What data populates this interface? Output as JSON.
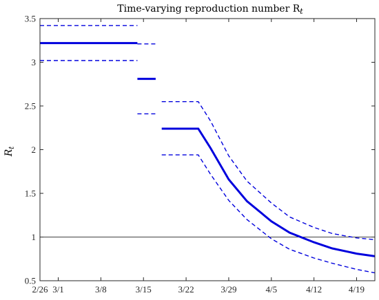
{
  "chart_data": {
    "type": "line",
    "title": "Time-varying reproduction number R",
    "title_subscript": "t",
    "ylabel": "R",
    "ylabel_subscript": "t",
    "xlabel": "",
    "xlim": [
      "2026-02-26",
      "2026-04-22"
    ],
    "ylim": [
      0.5,
      3.5
    ],
    "x_ticks": [
      {
        "date": "2026-02-26",
        "label": "2/26"
      },
      {
        "date": "2026-03-01",
        "label": "3/1"
      },
      {
        "date": "2026-03-08",
        "label": "3/8"
      },
      {
        "date": "2026-03-15",
        "label": "3/15"
      },
      {
        "date": "2026-03-22",
        "label": "3/22"
      },
      {
        "date": "2026-03-29",
        "label": "3/29"
      },
      {
        "date": "2026-04-05",
        "label": "4/5"
      },
      {
        "date": "2026-04-12",
        "label": "4/12"
      },
      {
        "date": "2026-04-19",
        "label": "4/19"
      }
    ],
    "y_ticks": [
      {
        "value": 0.5,
        "label": "0.5"
      },
      {
        "value": 1,
        "label": "1"
      },
      {
        "value": 1.5,
        "label": "1.5"
      },
      {
        "value": 2,
        "label": "2"
      },
      {
        "value": 2.5,
        "label": "2.5"
      },
      {
        "value": 3,
        "label": "3"
      },
      {
        "value": 3.5,
        "label": "3.5"
      }
    ],
    "grid": false,
    "reference_line": {
      "y": 1,
      "color": "#000000"
    },
    "series": [
      {
        "role": "estimate",
        "style": "solid",
        "color": "#0000dd",
        "segments": [
          [
            {
              "x": "2026-02-26",
              "y": 3.22
            },
            {
              "x": "2026-03-14",
              "y": 3.22
            }
          ],
          [
            {
              "x": "2026-03-14",
              "y": 2.81
            },
            {
              "x": "2026-03-17",
              "y": 2.81
            }
          ],
          [
            {
              "x": "2026-03-18",
              "y": 2.24
            },
            {
              "x": "2026-03-24",
              "y": 2.24
            },
            {
              "x": "2026-03-26",
              "y": 2.02
            },
            {
              "x": "2026-03-29",
              "y": 1.66
            },
            {
              "x": "2026-04-01",
              "y": 1.41
            },
            {
              "x": "2026-04-05",
              "y": 1.18
            },
            {
              "x": "2026-04-08",
              "y": 1.05
            },
            {
              "x": "2026-04-12",
              "y": 0.94
            },
            {
              "x": "2026-04-15",
              "y": 0.87
            },
            {
              "x": "2026-04-19",
              "y": 0.81
            },
            {
              "x": "2026-04-22",
              "y": 0.78
            }
          ]
        ]
      },
      {
        "role": "upper-bound",
        "style": "dashed",
        "color": "#0000dd",
        "segments": [
          [
            {
              "x": "2026-02-26",
              "y": 3.42
            },
            {
              "x": "2026-03-14",
              "y": 3.42
            }
          ],
          [
            {
              "x": "2026-03-14",
              "y": 3.21
            },
            {
              "x": "2026-03-17",
              "y": 3.21
            }
          ],
          [
            {
              "x": "2026-03-18",
              "y": 2.55
            },
            {
              "x": "2026-03-24",
              "y": 2.55
            },
            {
              "x": "2026-03-26",
              "y": 2.33
            },
            {
              "x": "2026-03-29",
              "y": 1.93
            },
            {
              "x": "2026-04-01",
              "y": 1.64
            },
            {
              "x": "2026-04-05",
              "y": 1.39
            },
            {
              "x": "2026-04-08",
              "y": 1.23
            },
            {
              "x": "2026-04-12",
              "y": 1.11
            },
            {
              "x": "2026-04-15",
              "y": 1.04
            },
            {
              "x": "2026-04-19",
              "y": 0.99
            },
            {
              "x": "2026-04-22",
              "y": 0.97
            }
          ]
        ]
      },
      {
        "role": "lower-bound",
        "style": "dashed",
        "color": "#0000dd",
        "segments": [
          [
            {
              "x": "2026-02-26",
              "y": 3.02
            },
            {
              "x": "2026-03-14",
              "y": 3.02
            }
          ],
          [
            {
              "x": "2026-03-14",
              "y": 2.41
            },
            {
              "x": "2026-03-17",
              "y": 2.41
            }
          ],
          [
            {
              "x": "2026-03-18",
              "y": 1.94
            },
            {
              "x": "2026-03-24",
              "y": 1.94
            },
            {
              "x": "2026-03-26",
              "y": 1.72
            },
            {
              "x": "2026-03-29",
              "y": 1.42
            },
            {
              "x": "2026-04-01",
              "y": 1.2
            },
            {
              "x": "2026-04-05",
              "y": 0.98
            },
            {
              "x": "2026-04-08",
              "y": 0.86
            },
            {
              "x": "2026-04-12",
              "y": 0.76
            },
            {
              "x": "2026-04-15",
              "y": 0.7
            },
            {
              "x": "2026-04-19",
              "y": 0.63
            },
            {
              "x": "2026-04-22",
              "y": 0.59
            }
          ]
        ]
      }
    ]
  }
}
